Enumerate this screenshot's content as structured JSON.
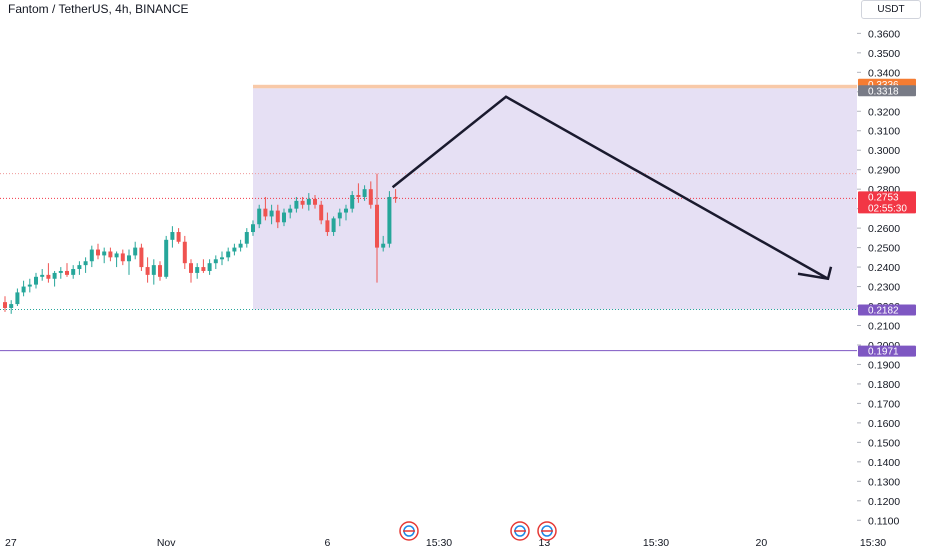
{
  "header": {
    "title": "Fantom / TetherUS, 4h, BINANCE",
    "currency": "USDT"
  },
  "colors": {
    "up": "#26a69a",
    "down": "#ef5350",
    "zone": "#e3ddf3",
    "line": "#1a1a2e",
    "target": "#f57c32",
    "support": "#7e57c2",
    "current": "#f23645"
  },
  "chart_data": {
    "type": "candlestick",
    "ylim": [
      0.105,
      0.372
    ],
    "yticks": [
      "0.3600",
      "0.3500",
      "0.3400",
      "0.3300",
      "0.3200",
      "0.3100",
      "0.3000",
      "0.2900",
      "0.2800",
      "0.2700",
      "0.2600",
      "0.2500",
      "0.2400",
      "0.2300",
      "0.2200",
      "0.2100",
      "0.2000",
      "0.1900",
      "0.1800",
      "0.1700",
      "0.1600",
      "0.1500",
      "0.1400",
      "0.1300",
      "0.1200",
      "0.1100"
    ],
    "xticks": [
      {
        "label": "27",
        "bar": 0
      },
      {
        "label": "Nov",
        "bar": 26
      },
      {
        "label": "6",
        "bar": 52
      },
      {
        "label": "15:30",
        "bar": 70
      },
      {
        "label": "13",
        "bar": 87
      },
      {
        "label": "15:30",
        "bar": 105
      },
      {
        "label": "20",
        "bar": 122
      },
      {
        "label": "15:30",
        "bar": 140
      }
    ],
    "candles": [
      [
        0.222,
        0.225,
        0.217,
        0.219
      ],
      [
        0.219,
        0.223,
        0.216,
        0.221
      ],
      [
        0.221,
        0.229,
        0.22,
        0.227
      ],
      [
        0.227,
        0.233,
        0.225,
        0.23
      ],
      [
        0.23,
        0.234,
        0.227,
        0.231
      ],
      [
        0.231,
        0.237,
        0.229,
        0.235
      ],
      [
        0.235,
        0.239,
        0.233,
        0.236
      ],
      [
        0.236,
        0.242,
        0.232,
        0.234
      ],
      [
        0.234,
        0.238,
        0.23,
        0.237
      ],
      [
        0.237,
        0.24,
        0.234,
        0.238
      ],
      [
        0.238,
        0.242,
        0.235,
        0.236
      ],
      [
        0.236,
        0.241,
        0.234,
        0.239
      ],
      [
        0.239,
        0.243,
        0.236,
        0.241
      ],
      [
        0.241,
        0.245,
        0.237,
        0.243
      ],
      [
        0.243,
        0.251,
        0.24,
        0.249
      ],
      [
        0.249,
        0.252,
        0.244,
        0.246
      ],
      [
        0.246,
        0.25,
        0.242,
        0.248
      ],
      [
        0.248,
        0.25,
        0.243,
        0.245
      ],
      [
        0.245,
        0.248,
        0.24,
        0.247
      ],
      [
        0.247,
        0.249,
        0.241,
        0.243
      ],
      [
        0.243,
        0.249,
        0.236,
        0.246
      ],
      [
        0.246,
        0.253,
        0.244,
        0.25
      ],
      [
        0.25,
        0.252,
        0.238,
        0.24
      ],
      [
        0.24,
        0.245,
        0.232,
        0.236
      ],
      [
        0.236,
        0.244,
        0.231,
        0.241
      ],
      [
        0.241,
        0.243,
        0.233,
        0.235
      ],
      [
        0.235,
        0.256,
        0.234,
        0.254
      ],
      [
        0.254,
        0.261,
        0.25,
        0.258
      ],
      [
        0.258,
        0.26,
        0.252,
        0.253
      ],
      [
        0.253,
        0.256,
        0.239,
        0.242
      ],
      [
        0.242,
        0.244,
        0.232,
        0.237
      ],
      [
        0.237,
        0.242,
        0.234,
        0.24
      ],
      [
        0.24,
        0.244,
        0.237,
        0.238
      ],
      [
        0.238,
        0.244,
        0.236,
        0.242
      ],
      [
        0.242,
        0.246,
        0.239,
        0.244
      ],
      [
        0.244,
        0.248,
        0.241,
        0.245
      ],
      [
        0.245,
        0.25,
        0.243,
        0.248
      ],
      [
        0.248,
        0.252,
        0.246,
        0.25
      ],
      [
        0.25,
        0.254,
        0.248,
        0.252
      ],
      [
        0.252,
        0.26,
        0.25,
        0.258
      ],
      [
        0.258,
        0.264,
        0.256,
        0.262
      ],
      [
        0.262,
        0.272,
        0.26,
        0.27
      ],
      [
        0.27,
        0.276,
        0.264,
        0.266
      ],
      [
        0.266,
        0.272,
        0.262,
        0.269
      ],
      [
        0.269,
        0.272,
        0.26,
        0.263
      ],
      [
        0.263,
        0.27,
        0.261,
        0.268
      ],
      [
        0.268,
        0.272,
        0.265,
        0.27
      ],
      [
        0.27,
        0.276,
        0.268,
        0.274
      ],
      [
        0.274,
        0.276,
        0.27,
        0.272
      ],
      [
        0.272,
        0.278,
        0.269,
        0.275
      ],
      [
        0.275,
        0.277,
        0.27,
        0.272
      ],
      [
        0.272,
        0.274,
        0.262,
        0.264
      ],
      [
        0.264,
        0.268,
        0.256,
        0.258
      ],
      [
        0.258,
        0.266,
        0.256,
        0.265
      ],
      [
        0.265,
        0.27,
        0.261,
        0.268
      ],
      [
        0.268,
        0.272,
        0.264,
        0.27
      ],
      [
        0.27,
        0.279,
        0.268,
        0.277
      ],
      [
        0.277,
        0.283,
        0.273,
        0.276
      ],
      [
        0.276,
        0.282,
        0.274,
        0.28
      ],
      [
        0.28,
        0.284,
        0.27,
        0.272
      ],
      [
        0.272,
        0.288,
        0.232,
        0.25
      ],
      [
        0.25,
        0.256,
        0.248,
        0.252
      ],
      [
        0.252,
        0.279,
        0.25,
        0.276
      ],
      [
        0.276,
        0.28,
        0.273,
        0.2753
      ]
    ],
    "annotations": {
      "target_price": "0.3336",
      "target_price_low": "0.3318",
      "current_price": "0.2753",
      "countdown": "02:55:30",
      "zone_low_price": "0.2182",
      "support_price": "0.1971"
    }
  }
}
